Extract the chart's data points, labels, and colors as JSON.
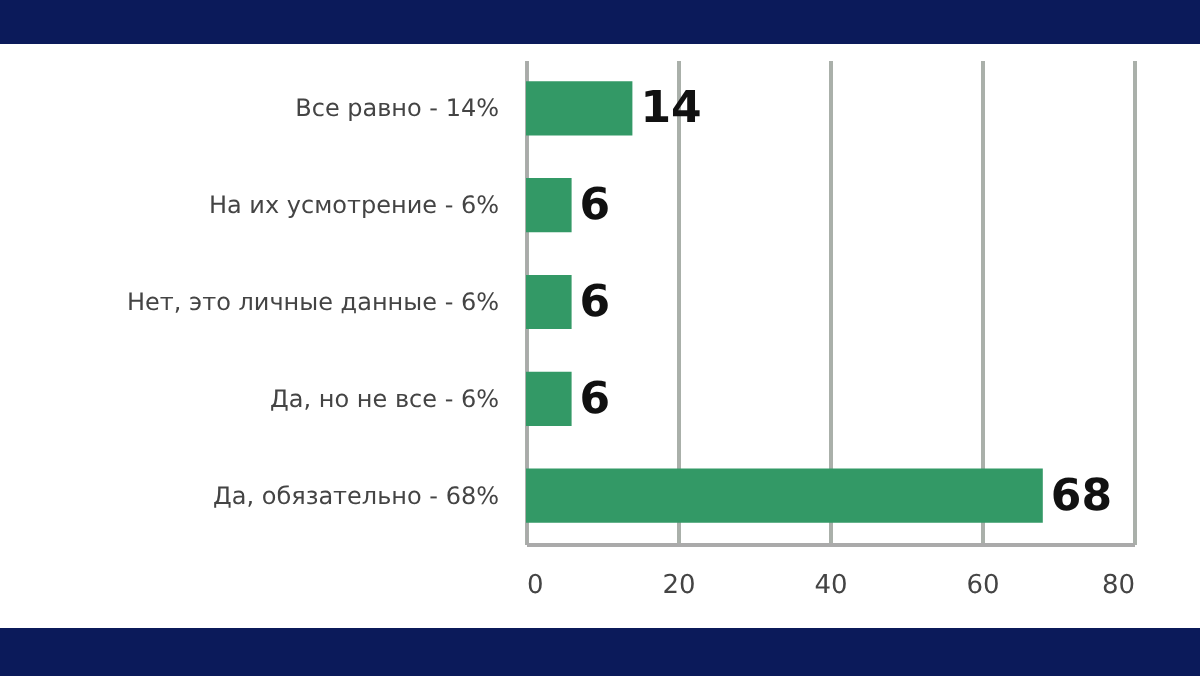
{
  "chart_data": {
    "type": "bar",
    "orientation": "horizontal",
    "categories": [
      "Все равно -  14%",
      "На их усмотрение  - 6%",
      "Нет, это личные данные  - 6%",
      "Да, но не все - 6%",
      "Да, обязательно  - 68%"
    ],
    "values": [
      14,
      6,
      6,
      6,
      68
    ],
    "color": "#339966",
    "xlim": [
      0,
      80
    ],
    "xticks": [
      0,
      20,
      40,
      60,
      80
    ],
    "grid": "x",
    "data_labels": true
  }
}
